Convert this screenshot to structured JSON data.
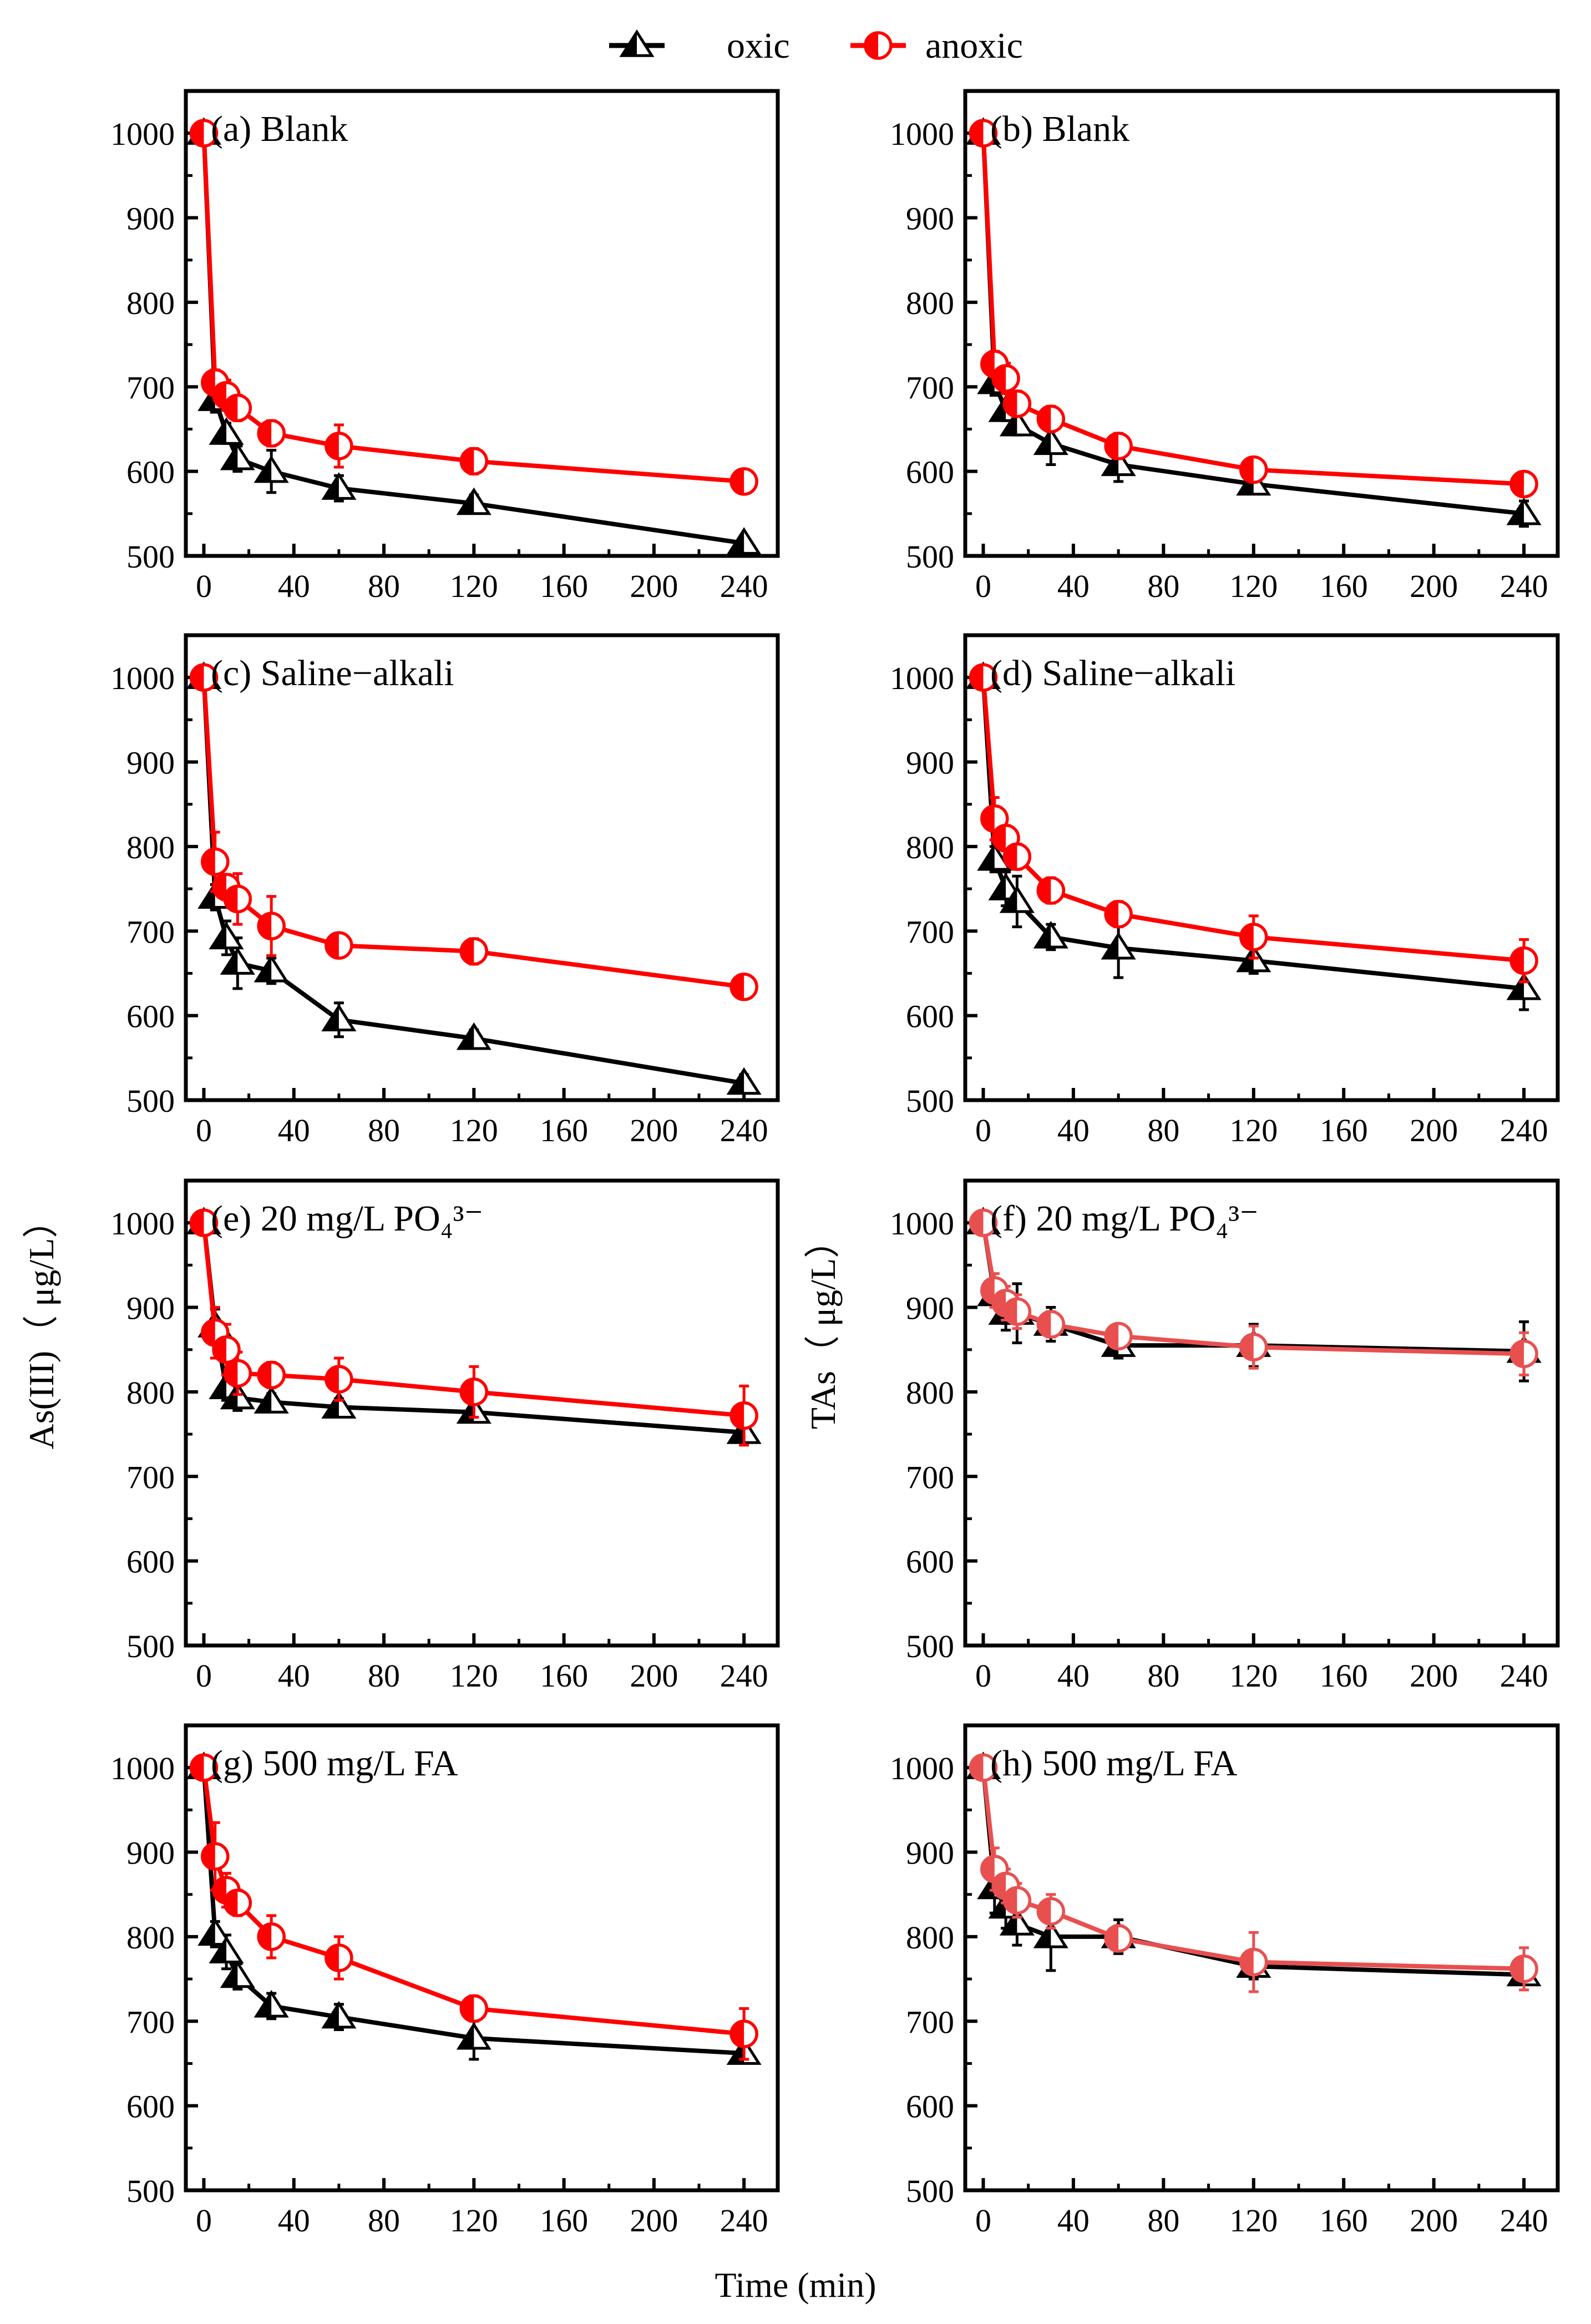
{
  "legend": {
    "items": [
      {
        "name": "oxic",
        "label": "oxic",
        "color": "#000000",
        "marker": "half-filled-triangle-icon"
      },
      {
        "name": "anoxic",
        "label": "anoxic",
        "color": "#ff0000",
        "marker": "half-filled-circle-icon"
      }
    ]
  },
  "axis_labels": {
    "y_left": "As(III)（ μg/L）",
    "y_right": "TAs（ μg/L）",
    "x": "Time (min)"
  },
  "colors": {
    "oxic": "#000000",
    "anoxic_left": "#ff0000",
    "anoxic_right_lower": "#e8504f"
  },
  "chart_data": [
    {
      "type": "line",
      "id": "a",
      "title": "(a) Blank",
      "xlabel": "Time (min)",
      "ylabel": "As(III)（ μg/L）",
      "xlim": [
        -8,
        255
      ],
      "ylim": [
        500,
        1050
      ],
      "xticks": [
        0,
        40,
        80,
        120,
        160,
        200,
        240
      ],
      "yticks": [
        500,
        600,
        700,
        800,
        900,
        1000
      ],
      "x": [
        0,
        5,
        10,
        15,
        30,
        60,
        120,
        240
      ],
      "series": [
        {
          "name": "oxic",
          "values": [
            1000,
            685,
            645,
            615,
            600,
            580,
            562,
            515
          ],
          "errors": [
            10,
            15,
            12,
            15,
            25,
            15,
            10,
            8
          ]
        },
        {
          "name": "anoxic",
          "values": [
            1000,
            705,
            690,
            675,
            645,
            630,
            612,
            588
          ],
          "errors": [
            5,
            15,
            18,
            15,
            15,
            25,
            15,
            10
          ]
        }
      ]
    },
    {
      "type": "line",
      "id": "b",
      "title": "(b) Blank",
      "xlabel": "Time (min)",
      "ylabel": "TAs（ μg/L）",
      "xlim": [
        -8,
        255
      ],
      "ylim": [
        500,
        1050
      ],
      "xticks": [
        0,
        40,
        80,
        120,
        160,
        200,
        240
      ],
      "yticks": [
        500,
        600,
        700,
        800,
        900,
        1000
      ],
      "x": [
        0,
        5,
        10,
        15,
        30,
        60,
        120,
        240
      ],
      "series": [
        {
          "name": "oxic",
          "values": [
            1000,
            705,
            672,
            655,
            633,
            608,
            585,
            550
          ],
          "errors": [
            10,
            15,
            12,
            12,
            25,
            20,
            10,
            15
          ]
        },
        {
          "name": "anoxic",
          "values": [
            1000,
            727,
            710,
            680,
            662,
            630,
            602,
            585
          ],
          "errors": [
            5,
            15,
            18,
            15,
            15,
            15,
            10,
            10
          ]
        }
      ]
    },
    {
      "type": "line",
      "id": "c",
      "title": "(c) Saline−alkali",
      "xlabel": "Time (min)",
      "ylabel": "As(III)（ μg/L）",
      "xlim": [
        -8,
        255
      ],
      "ylim": [
        500,
        1050
      ],
      "xticks": [
        0,
        40,
        80,
        120,
        160,
        200,
        240
      ],
      "yticks": [
        500,
        600,
        700,
        800,
        900,
        1000
      ],
      "x": [
        0,
        5,
        10,
        15,
        30,
        60,
        120,
        240
      ],
      "series": [
        {
          "name": "oxic",
          "values": [
            1000,
            740,
            692,
            662,
            653,
            595,
            573,
            520
          ],
          "errors": [
            10,
            15,
            20,
            30,
            15,
            20,
            10,
            10
          ]
        },
        {
          "name": "anoxic",
          "values": [
            1000,
            782,
            752,
            738,
            706,
            683,
            676,
            634
          ],
          "errors": [
            5,
            35,
            15,
            30,
            35,
            10,
            15,
            10
          ]
        }
      ]
    },
    {
      "type": "line",
      "id": "d",
      "title": "(d) Saline−alkali",
      "xlabel": "Time (min)",
      "ylabel": "TAs（ μg/L）",
      "xlim": [
        -8,
        255
      ],
      "ylim": [
        500,
        1050
      ],
      "xticks": [
        0,
        40,
        80,
        120,
        160,
        200,
        240
      ],
      "yticks": [
        500,
        600,
        700,
        800,
        900,
        1000
      ],
      "x": [
        0,
        5,
        10,
        15,
        30,
        60,
        120,
        240
      ],
      "series": [
        {
          "name": "oxic",
          "values": [
            1000,
            785,
            750,
            735,
            693,
            680,
            665,
            632
          ],
          "errors": [
            10,
            15,
            20,
            30,
            15,
            35,
            15,
            25
          ]
        },
        {
          "name": "anoxic",
          "values": [
            1000,
            833,
            810,
            788,
            748,
            720,
            693,
            665
          ],
          "errors": [
            5,
            25,
            15,
            15,
            15,
            15,
            25,
            25
          ]
        }
      ]
    },
    {
      "type": "line",
      "id": "e",
      "title": "(e) 20 mg/L PO₄³⁻",
      "xlabel": "Time (min)",
      "ylabel": "As(III)（ μg/L）",
      "xlim": [
        -8,
        255
      ],
      "ylim": [
        500,
        1050
      ],
      "xticks": [
        0,
        40,
        80,
        120,
        160,
        200,
        240
      ],
      "yticks": [
        500,
        600,
        700,
        800,
        900,
        1000
      ],
      "x": [
        0,
        5,
        10,
        15,
        30,
        60,
        120,
        240
      ],
      "series": [
        {
          "name": "oxic",
          "values": [
            1000,
            878,
            805,
            793,
            788,
            782,
            776,
            752
          ],
          "errors": [
            10,
            20,
            15,
            15,
            10,
            10,
            10,
            10
          ]
        },
        {
          "name": "anoxic",
          "values": [
            1000,
            870,
            850,
            822,
            820,
            815,
            800,
            772
          ],
          "errors": [
            5,
            30,
            30,
            25,
            15,
            25,
            30,
            35
          ]
        }
      ]
    },
    {
      "type": "line",
      "id": "f",
      "title": "(f) 20 mg/L PO₄³⁻",
      "xlabel": "Time (min)",
      "ylabel": "TAs（ μg/L）",
      "xlim": [
        -8,
        255
      ],
      "ylim": [
        500,
        1050
      ],
      "xticks": [
        0,
        40,
        80,
        120,
        160,
        200,
        240
      ],
      "yticks": [
        500,
        600,
        700,
        800,
        900,
        1000
      ],
      "x": [
        0,
        5,
        10,
        15,
        30,
        60,
        120,
        240
      ],
      "series": [
        {
          "name": "oxic",
          "values": [
            1000,
            915,
            893,
            893,
            880,
            855,
            855,
            848
          ],
          "errors": [
            10,
            15,
            20,
            35,
            20,
            15,
            25,
            35
          ]
        },
        {
          "name": "anoxic",
          "values": [
            1000,
            920,
            905,
            895,
            880,
            866,
            853,
            845
          ],
          "errors": [
            5,
            20,
            20,
            20,
            15,
            10,
            25,
            25
          ]
        }
      ]
    },
    {
      "type": "line",
      "id": "g",
      "title": "(g) 500 mg/L FA",
      "xlabel": "Time (min)",
      "ylabel": "As(III)（ μg/L）",
      "xlim": [
        -8,
        255
      ],
      "ylim": [
        500,
        1050
      ],
      "xticks": [
        0,
        40,
        80,
        120,
        160,
        200,
        240
      ],
      "yticks": [
        500,
        600,
        700,
        800,
        900,
        1000
      ],
      "x": [
        0,
        5,
        10,
        15,
        30,
        60,
        120,
        240
      ],
      "series": [
        {
          "name": "oxic",
          "values": [
            1000,
            803,
            782,
            753,
            718,
            705,
            680,
            662
          ],
          "errors": [
            10,
            15,
            20,
            15,
            15,
            15,
            25,
            10
          ]
        },
        {
          "name": "anoxic",
          "values": [
            1000,
            895,
            855,
            840,
            800,
            775,
            715,
            685
          ],
          "errors": [
            5,
            40,
            20,
            15,
            25,
            25,
            15,
            30
          ]
        }
      ]
    },
    {
      "type": "line",
      "id": "h",
      "title": "(h) 500 mg/L FA",
      "xlabel": "Time (min)",
      "ylabel": "TAs（ μg/L）",
      "xlim": [
        -8,
        255
      ],
      "ylim": [
        500,
        1050
      ],
      "xticks": [
        0,
        40,
        80,
        120,
        160,
        200,
        240
      ],
      "yticks": [
        500,
        600,
        700,
        800,
        900,
        1000
      ],
      "x": [
        0,
        5,
        10,
        15,
        30,
        60,
        120,
        240
      ],
      "series": [
        {
          "name": "oxic",
          "values": [
            1000,
            858,
            835,
            815,
            800,
            800,
            765,
            755
          ],
          "errors": [
            10,
            30,
            25,
            25,
            40,
            20,
            15,
            10
          ]
        },
        {
          "name": "anoxic",
          "values": [
            1000,
            880,
            860,
            843,
            830,
            798,
            770,
            762
          ],
          "errors": [
            5,
            25,
            20,
            20,
            20,
            15,
            35,
            25
          ]
        }
      ]
    }
  ]
}
